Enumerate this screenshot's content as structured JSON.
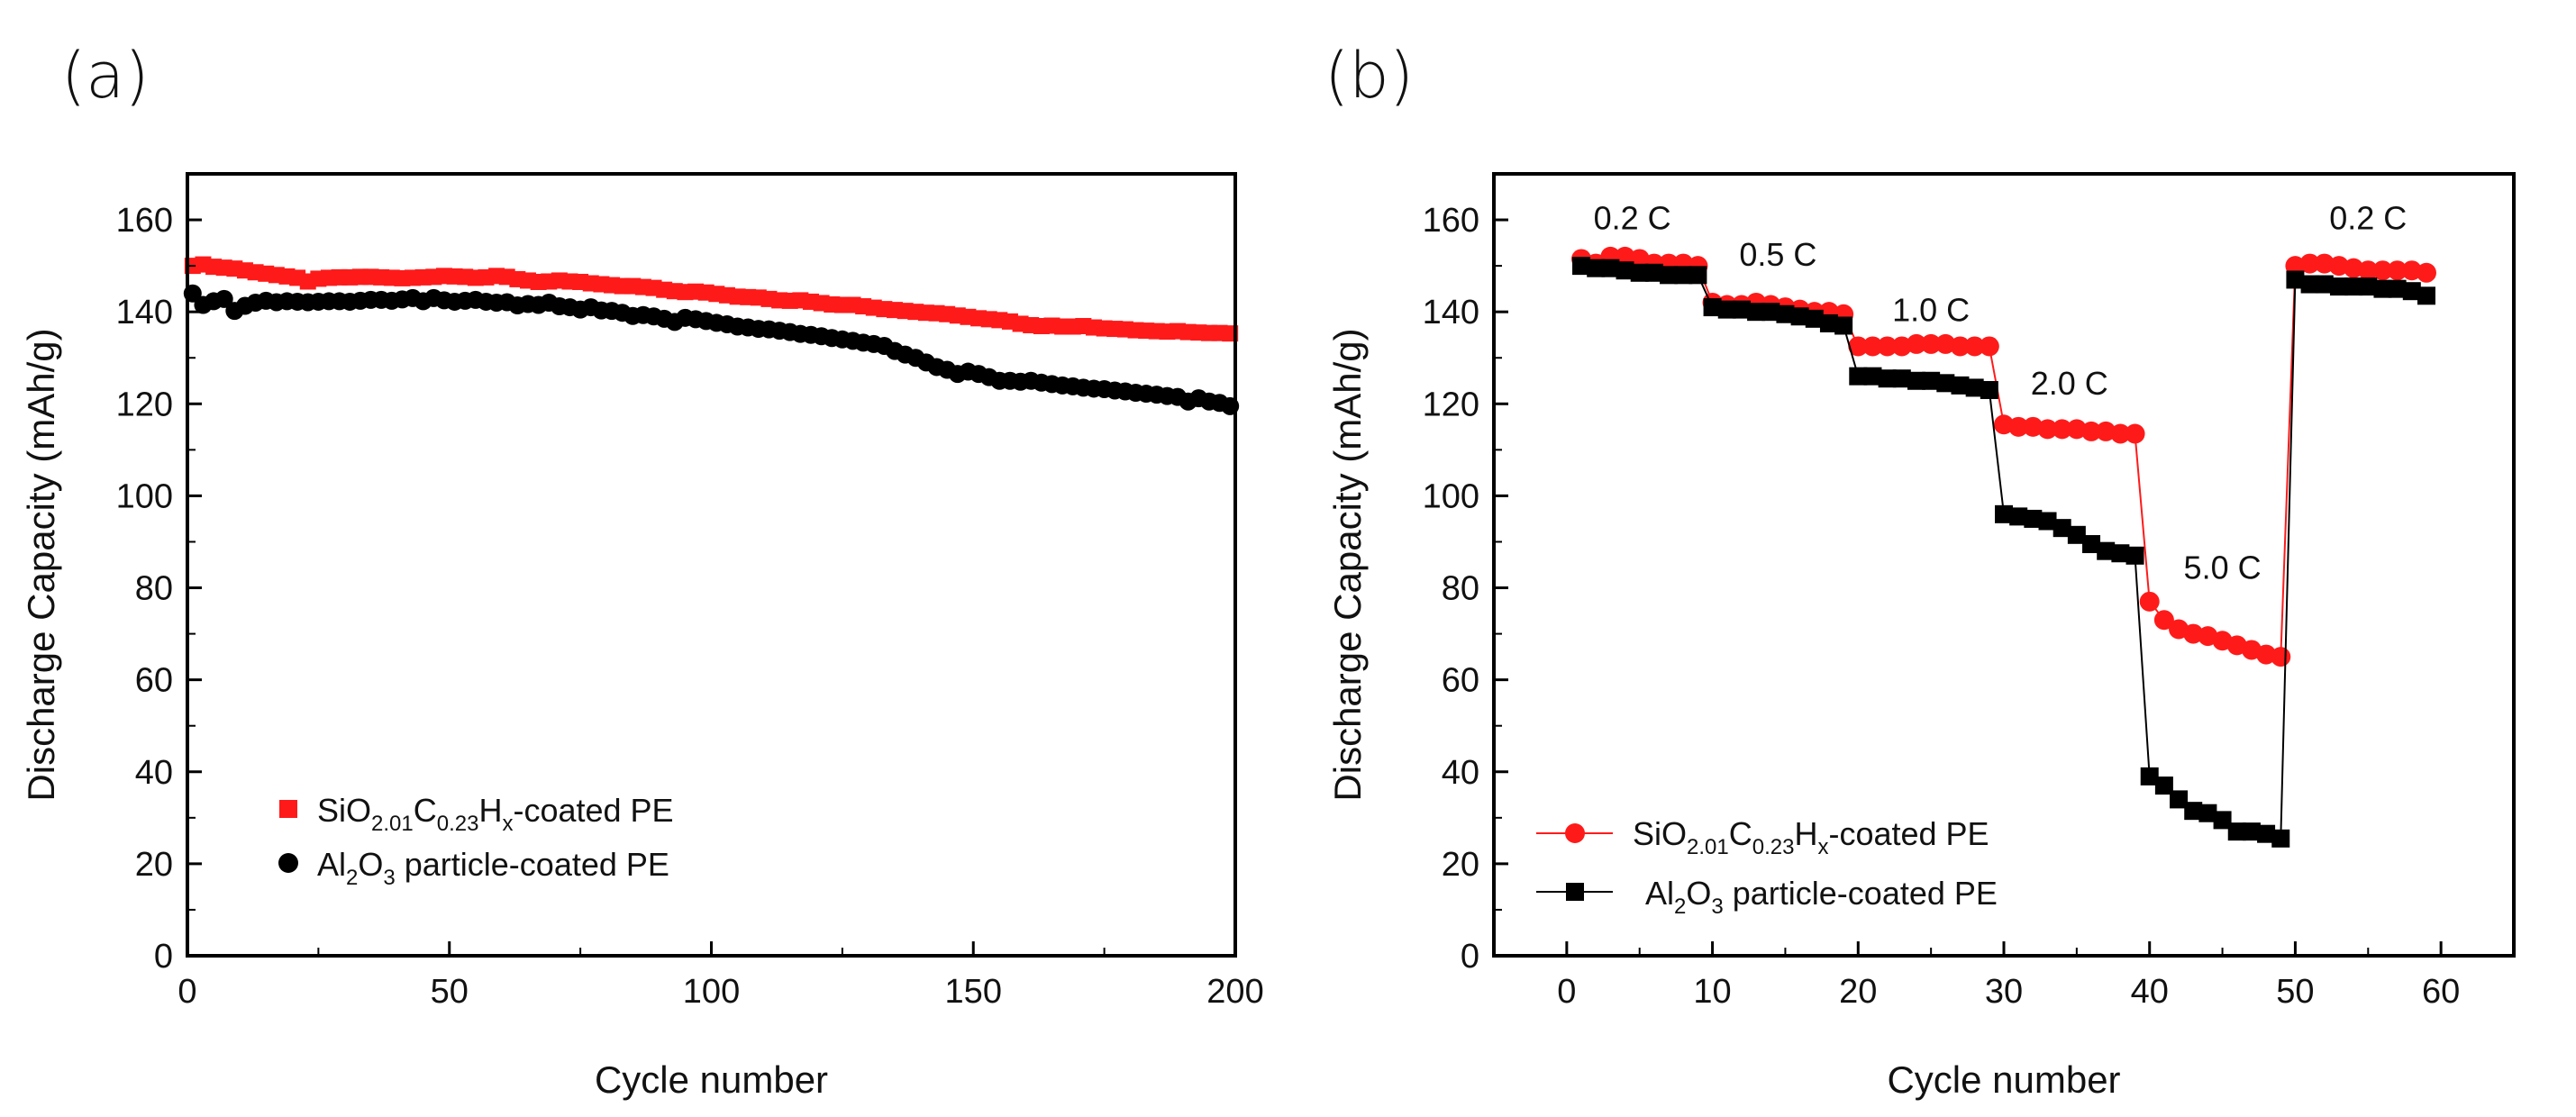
{
  "chart_data": [
    {
      "panel_label": "(a)",
      "type": "scatter",
      "xlabel": "Cycle number",
      "ylabel": "Discharge Capacity (mAh/g)",
      "xlim": [
        0,
        200
      ],
      "ylim": [
        0,
        170
      ],
      "xticks": [
        0,
        50,
        100,
        150,
        200
      ],
      "yticks": [
        0,
        20,
        40,
        60,
        80,
        100,
        120,
        140,
        160
      ],
      "legend_position": "bottom-left",
      "series": [
        {
          "name": "SiO2.01C0.23Hx-coated PE",
          "legend_main": "SiO",
          "legend_parts": [
            {
              "text": "SiO",
              "sub": false
            },
            {
              "text": "2.01",
              "sub": true
            },
            {
              "text": "C",
              "sub": false
            },
            {
              "text": "0.23",
              "sub": true
            },
            {
              "text": "H",
              "sub": false
            },
            {
              "text": "x",
              "sub": true
            },
            {
              "text": "-coated PE",
              "sub": false
            }
          ],
          "marker": "square",
          "color": "#ff1a1a",
          "x_start": 1,
          "x_step": 2,
          "values": [
            150.0,
            150.3,
            149.8,
            149.6,
            149.4,
            149.0,
            148.6,
            148.3,
            148.0,
            147.7,
            147.4,
            146.6,
            147.2,
            147.4,
            147.5,
            147.5,
            147.6,
            147.6,
            147.5,
            147.4,
            147.3,
            147.4,
            147.5,
            147.6,
            147.8,
            147.7,
            147.6,
            147.4,
            147.5,
            147.8,
            147.6,
            147.1,
            146.8,
            146.5,
            146.6,
            146.8,
            146.6,
            146.5,
            146.2,
            146.0,
            145.8,
            145.6,
            145.6,
            145.4,
            145.2,
            144.8,
            144.5,
            144.3,
            144.4,
            144.2,
            143.9,
            143.6,
            143.3,
            143.2,
            143.1,
            142.8,
            142.5,
            142.4,
            142.5,
            142.2,
            141.9,
            141.6,
            141.5,
            141.5,
            141.2,
            140.9,
            140.6,
            140.4,
            140.2,
            140.0,
            139.8,
            139.7,
            139.5,
            139.2,
            138.9,
            138.6,
            138.4,
            138.2,
            137.9,
            137.4,
            137.1,
            136.9,
            137.0,
            136.8,
            136.8,
            136.9,
            136.6,
            136.4,
            136.3,
            136.2,
            136.0,
            135.9,
            135.8,
            135.7,
            135.8,
            135.6,
            135.5,
            135.4,
            135.4,
            135.3
          ]
        },
        {
          "name": "Al2O3 particle-coated PE",
          "legend_main": "Al",
          "legend_parts": [
            {
              "text": "Al",
              "sub": false
            },
            {
              "text": "2",
              "sub": true
            },
            {
              "text": "O",
              "sub": false
            },
            {
              "text": "3",
              "sub": true
            },
            {
              "text": " particle-coated PE",
              "sub": false
            }
          ],
          "marker": "circle",
          "color": "#000000",
          "x_start": 1,
          "x_step": 2,
          "values": [
            144.0,
            141.5,
            142.3,
            142.8,
            140.2,
            141.3,
            142.0,
            142.4,
            142.1,
            142.3,
            142.2,
            142.1,
            142.2,
            142.3,
            142.3,
            142.2,
            142.4,
            142.6,
            142.6,
            142.4,
            142.7,
            143.0,
            142.3,
            143.0,
            142.5,
            142.2,
            142.4,
            142.6,
            142.2,
            142.0,
            142.1,
            141.4,
            141.7,
            141.5,
            142.0,
            141.2,
            141.0,
            140.5,
            141.0,
            140.3,
            140.2,
            139.8,
            139.1,
            139.3,
            139.0,
            138.5,
            137.8,
            138.7,
            138.4,
            138.0,
            137.6,
            137.3,
            136.8,
            136.6,
            136.3,
            136.2,
            135.9,
            135.6,
            135.2,
            135.0,
            134.7,
            134.3,
            134.0,
            133.7,
            133.3,
            133.0,
            132.6,
            131.5,
            130.7,
            130.0,
            129.0,
            128.0,
            127.4,
            126.5,
            127.0,
            126.5,
            125.8,
            125.0,
            125.0,
            124.8,
            125.0,
            124.6,
            124.3,
            124.0,
            123.8,
            123.5,
            123.3,
            123.2,
            122.9,
            122.7,
            122.4,
            122.2,
            122.0,
            121.7,
            121.5,
            120.5,
            121.2,
            120.5,
            120.2,
            119.5
          ]
        }
      ]
    },
    {
      "panel_label": "(b)",
      "type": "scatter",
      "xlabel": "Cycle number",
      "ylabel": "Discharge Capacity (mAh/g)",
      "xlim": [
        -5,
        65
      ],
      "ylim": [
        0,
        170
      ],
      "xticks": [
        0,
        10,
        20,
        30,
        40,
        50,
        60
      ],
      "yticks": [
        0,
        20,
        40,
        60,
        80,
        100,
        120,
        140,
        160
      ],
      "legend_position": "bottom-left",
      "annotations": [
        {
          "text": "0.2 C",
          "x": 4.5,
          "y": 158
        },
        {
          "text": "0.5 C",
          "x": 14.5,
          "y": 150
        },
        {
          "text": "1.0 C",
          "x": 25,
          "y": 138
        },
        {
          "text": "2.0 C",
          "x": 34.5,
          "y": 122
        },
        {
          "text": "5.0 C",
          "x": 45,
          "y": 82
        },
        {
          "text": "0.2 C",
          "x": 55,
          "y": 158
        }
      ],
      "series": [
        {
          "name": "SiO2.01C0.23Hx-coated PE",
          "legend_main": "SiO",
          "legend_parts": [
            {
              "text": "SiO",
              "sub": false
            },
            {
              "text": "2.01",
              "sub": true
            },
            {
              "text": "C",
              "sub": false
            },
            {
              "text": "0.23",
              "sub": true
            },
            {
              "text": "H",
              "sub": false
            },
            {
              "text": "x",
              "sub": true
            },
            {
              "text": "-coated PE",
              "sub": false
            }
          ],
          "marker": "circle",
          "line": true,
          "color": "#ff1a1a",
          "x": [
            1,
            2,
            3,
            4,
            5,
            6,
            7,
            8,
            9,
            10,
            11,
            12,
            13,
            14,
            15,
            16,
            17,
            18,
            19,
            20,
            21,
            22,
            23,
            24,
            25,
            26,
            27,
            28,
            29,
            30,
            31,
            32,
            33,
            34,
            35,
            36,
            37,
            38,
            39,
            40,
            41,
            42,
            43,
            44,
            45,
            46,
            47,
            48,
            49,
            50,
            51,
            52,
            53,
            54,
            55,
            56,
            57,
            58,
            59
          ],
          "y": [
            151.5,
            150.5,
            152.0,
            152.0,
            151.5,
            150.5,
            150.5,
            150.5,
            150.0,
            142.0,
            141.5,
            141.5,
            142.0,
            141.5,
            141.0,
            140.5,
            140.0,
            140.0,
            139.5,
            132.5,
            132.5,
            132.5,
            132.5,
            133.0,
            133.0,
            133.0,
            132.5,
            132.5,
            132.5,
            115.5,
            115.0,
            115.0,
            114.5,
            114.5,
            114.5,
            114.0,
            114.0,
            113.5,
            113.5,
            77.0,
            73.0,
            71.0,
            70.0,
            69.5,
            68.5,
            67.5,
            66.5,
            65.5,
            65.0,
            150.0,
            150.5,
            150.5,
            150.0,
            149.5,
            149.0,
            149.0,
            149.0,
            149.0,
            148.5
          ]
        },
        {
          "name": "Al2O3 particle-coated PE",
          "legend_main": "Al",
          "legend_parts": [
            {
              "text": "Al",
              "sub": false
            },
            {
              "text": "2",
              "sub": true
            },
            {
              "text": "O",
              "sub": false
            },
            {
              "text": "3",
              "sub": true
            },
            {
              "text": " particle-coated PE",
              "sub": false
            }
          ],
          "marker": "square",
          "line": true,
          "color": "#000000",
          "x": [
            1,
            2,
            3,
            4,
            5,
            6,
            7,
            8,
            9,
            10,
            11,
            12,
            13,
            14,
            15,
            16,
            17,
            18,
            19,
            20,
            21,
            22,
            23,
            24,
            25,
            26,
            27,
            28,
            29,
            30,
            31,
            32,
            33,
            34,
            35,
            36,
            37,
            38,
            39,
            40,
            41,
            42,
            43,
            44,
            45,
            46,
            47,
            48,
            49,
            50,
            51,
            52,
            53,
            54,
            55,
            56,
            57,
            58,
            59
          ],
          "y": [
            150.0,
            149.5,
            149.5,
            149.0,
            148.5,
            148.5,
            148.0,
            148.0,
            148.0,
            141.0,
            140.5,
            140.5,
            140.0,
            140.0,
            139.5,
            139.0,
            138.5,
            137.5,
            137.0,
            126.0,
            126.0,
            125.5,
            125.5,
            125.0,
            125.0,
            124.5,
            124.0,
            123.5,
            123.0,
            96.0,
            95.5,
            95.0,
            94.5,
            93.0,
            91.5,
            89.5,
            88.0,
            87.5,
            87.0,
            39.0,
            37.0,
            34.0,
            31.5,
            31.0,
            29.5,
            27.0,
            27.0,
            26.5,
            25.5,
            147.0,
            146.0,
            146.0,
            145.5,
            145.5,
            145.5,
            145.0,
            145.0,
            144.5,
            143.5
          ]
        }
      ]
    }
  ]
}
